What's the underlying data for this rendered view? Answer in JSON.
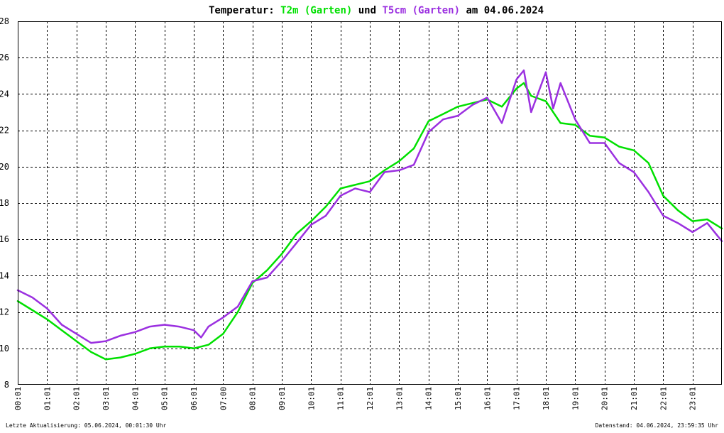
{
  "header": {
    "prefix": "Temperatur: ",
    "series1_label": "T2m (Garten)",
    "connector": " und ",
    "series2_label": "T5cm (Garten)",
    "suffix": " am 04.06.2024"
  },
  "footer": {
    "left": "Letzte Aktualisierung: 05.06.2024, 00:01:30 Uhr",
    "right": "Datenstand: 04.06.2024, 23:59:35 Uhr"
  },
  "colors": {
    "t2m": "#00e000",
    "t5cm": "#9b30e0",
    "grid": "#000000",
    "background": "#ffffff"
  },
  "chart_data": {
    "type": "line",
    "title": "Temperatur: T2m (Garten) und T5cm (Garten) am 04.06.2024",
    "xlabel": "",
    "ylabel": "",
    "ylim": [
      8,
      28
    ],
    "yticks": [
      "8",
      "10",
      "12",
      "14",
      "16",
      "18",
      "20",
      "22",
      "24",
      "26",
      "28"
    ],
    "xticks": [
      "00:01",
      "01:01",
      "02:01",
      "03:01",
      "04:01",
      "05:01",
      "06:01",
      "07:00",
      "08:01",
      "09:01",
      "10:01",
      "11:01",
      "12:01",
      "13:01",
      "14:01",
      "15:01",
      "16:01",
      "17:01",
      "18:01",
      "19:01",
      "20:01",
      "21:01",
      "22:01",
      "23:01"
    ],
    "grid": true,
    "series": [
      {
        "name": "T2m (Garten)",
        "color": "#00e000",
        "x_hours": [
          0,
          0.5,
          1,
          1.5,
          2,
          2.5,
          3,
          3.5,
          4,
          4.5,
          5,
          5.5,
          6,
          6.5,
          7,
          7.5,
          8,
          8.5,
          9,
          9.5,
          10,
          10.5,
          11,
          11.5,
          12,
          12.5,
          13,
          13.5,
          14,
          14.5,
          15,
          15.5,
          16,
          16.5,
          17,
          17.25,
          17.5,
          18,
          18.5,
          19,
          19.5,
          20,
          20.5,
          21,
          21.5,
          22,
          22.5,
          23,
          23.5,
          24
        ],
        "values": [
          12.6,
          12.1,
          11.6,
          11.0,
          10.4,
          9.8,
          9.4,
          9.5,
          9.7,
          10.0,
          10.1,
          10.1,
          10.0,
          10.2,
          10.8,
          12.0,
          13.6,
          14.3,
          15.2,
          16.3,
          17.0,
          17.8,
          18.8,
          19.0,
          19.2,
          19.8,
          20.3,
          21.0,
          22.5,
          22.9,
          23.3,
          23.5,
          23.7,
          23.3,
          24.3,
          24.6,
          23.9,
          23.6,
          22.4,
          22.3,
          21.7,
          21.6,
          21.1,
          20.9,
          20.2,
          18.4,
          17.6,
          17.0,
          17.1,
          16.6
        ]
      },
      {
        "name": "T5cm (Garten)",
        "color": "#9b30e0",
        "x_hours": [
          0,
          0.5,
          1,
          1.5,
          2,
          2.5,
          3,
          3.5,
          4,
          4.5,
          5,
          5.5,
          6,
          6.25,
          6.5,
          7,
          7.5,
          8,
          8.5,
          9,
          9.5,
          10,
          10.5,
          11,
          11.5,
          12,
          12.5,
          13,
          13.5,
          14,
          14.5,
          15,
          15.5,
          16,
          16.5,
          17,
          17.25,
          17.5,
          18,
          18.25,
          18.5,
          19,
          19.5,
          20,
          20.5,
          21,
          21.5,
          22,
          22.5,
          23,
          23.5,
          24
        ],
        "values": [
          13.2,
          12.8,
          12.2,
          11.3,
          10.8,
          10.3,
          10.4,
          10.7,
          10.9,
          11.2,
          11.3,
          11.2,
          11.0,
          10.6,
          11.2,
          11.7,
          12.3,
          13.7,
          13.9,
          14.8,
          15.8,
          16.8,
          17.3,
          18.4,
          18.8,
          18.6,
          19.7,
          19.8,
          20.1,
          21.9,
          22.6,
          22.8,
          23.4,
          23.8,
          22.4,
          24.8,
          25.3,
          23.0,
          25.2,
          23.2,
          24.6,
          22.6,
          21.3,
          21.3,
          20.2,
          19.7,
          18.6,
          17.3,
          16.9,
          16.4,
          16.9,
          15.9
        ]
      }
    ]
  }
}
